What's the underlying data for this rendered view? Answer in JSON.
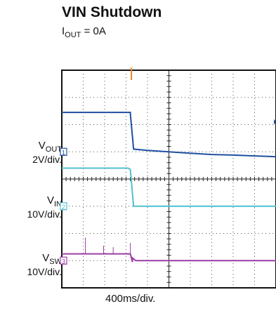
{
  "chart_data": {
    "type": "line",
    "title": "VIN Shutdown",
    "subtitle": {
      "symbol": "I",
      "sub": "OUT",
      "rest": " = 0A"
    },
    "xlabel": "400ms/div.",
    "x_divisions": 10,
    "y_divisions": 8,
    "grid": true,
    "trigger_marker": "T",
    "trigger_x_div": 3.25,
    "channels": [
      {
        "id": "1",
        "symbol": "V",
        "sub": "OUT",
        "scale": "2V/div.",
        "color": "#1f4fa0",
        "marker_y_div": 3.0,
        "points": [
          [
            0,
            1.55
          ],
          [
            3.2,
            1.55
          ],
          [
            3.2,
            1.6
          ],
          [
            3.35,
            2.9
          ],
          [
            4.0,
            2.95
          ],
          [
            5.0,
            3.0
          ],
          [
            6.0,
            3.05
          ],
          [
            7.0,
            3.1
          ],
          [
            8.0,
            3.12
          ],
          [
            9.0,
            3.15
          ],
          [
            10.0,
            3.18
          ]
        ]
      },
      {
        "id": "2",
        "symbol": "V",
        "sub": "IN",
        "scale": "10V/div.",
        "color": "#4fc0d0",
        "marker_y_div": 5.0,
        "points": [
          [
            0,
            3.6
          ],
          [
            3.1,
            3.6
          ],
          [
            3.2,
            3.65
          ],
          [
            3.35,
            5.0
          ],
          [
            10.0,
            5.0
          ]
        ]
      },
      {
        "id": "3",
        "symbol": "V",
        "sub": "SW",
        "scale": "10V/div.",
        "color": "#9c3fa5",
        "marker_y_div": 7.0,
        "points": [
          [
            0,
            6.75
          ],
          [
            3.2,
            6.75
          ],
          [
            3.3,
            7.05
          ],
          [
            3.3,
            6.9
          ],
          [
            3.45,
            7.0
          ],
          [
            10.0,
            7.0
          ]
        ],
        "spikes": [
          [
            1.1,
            6.75,
            6.15
          ],
          [
            1.95,
            6.75,
            6.45
          ],
          [
            2.4,
            6.75,
            6.5
          ],
          [
            3.2,
            6.75,
            6.35
          ]
        ]
      }
    ]
  }
}
